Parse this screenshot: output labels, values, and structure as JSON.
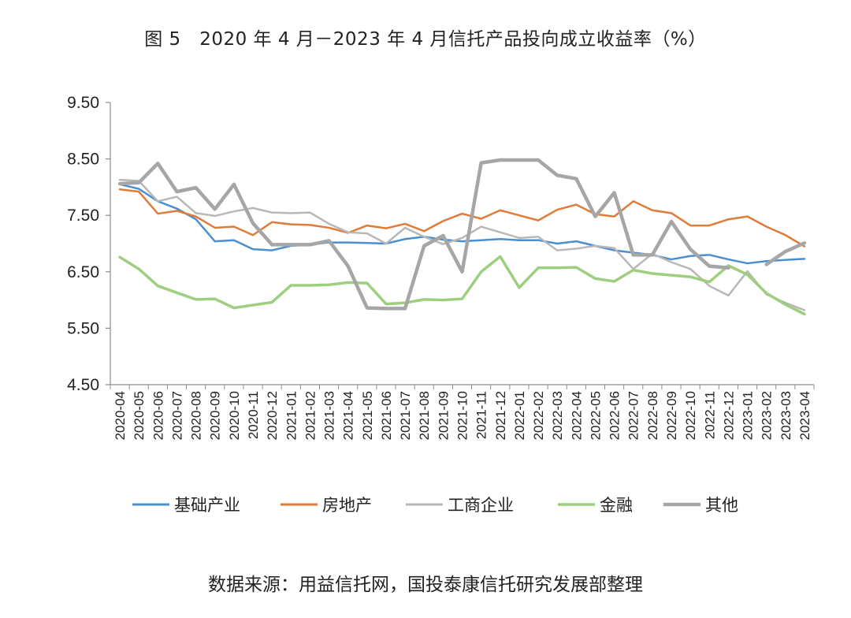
{
  "title": "图 5　2020 年 4 月－2023 年 4 月信托产品投向成立收益率（%）",
  "source_note": "数据来源：用益信托网，国投泰康信托研究发展部整理",
  "chart_data": {
    "type": "line",
    "ylim": [
      4.5,
      9.5
    ],
    "yticks": [
      "9.50",
      "8.50",
      "7.50",
      "6.50",
      "5.50",
      "4.50"
    ],
    "ytick_values": [
      9.5,
      8.5,
      7.5,
      6.5,
      5.5,
      4.5
    ],
    "grid": false,
    "legend_position": "bottom",
    "categories": [
      "2020-04",
      "2020-05",
      "2020-06",
      "2020-07",
      "2020-08",
      "2020-09",
      "2020-10",
      "2020-11",
      "2020-12",
      "2021-01",
      "2021-02",
      "2021-03",
      "2021-04",
      "2021-05",
      "2021-06",
      "2021-07",
      "2021-08",
      "2021-09",
      "2021-10",
      "2021-11",
      "2021-12",
      "2022-01",
      "2022-02",
      "2022-03",
      "2022-04",
      "2022-05",
      "2022-06",
      "2022-07",
      "2022-08",
      "2022-09",
      "2022-10",
      "2022-11",
      "2022-12",
      "2023-01",
      "2023-02",
      "2023-03",
      "2023-04"
    ],
    "series": [
      {
        "name": "基础产业",
        "color": "#4a8fcf",
        "width": 2.5,
        "values": [
          8.05,
          7.97,
          7.75,
          7.62,
          7.43,
          7.04,
          7.06,
          6.9,
          6.88,
          6.96,
          6.98,
          7.02,
          7.02,
          7.01,
          7.0,
          7.08,
          7.12,
          7.07,
          7.04,
          7.06,
          7.08,
          7.06,
          7.06,
          7.0,
          7.04,
          6.96,
          6.88,
          6.84,
          6.8,
          6.72,
          6.78,
          6.8,
          6.72,
          6.65,
          6.69,
          6.71,
          6.73
        ]
      },
      {
        "name": "房地产",
        "color": "#e07b39",
        "width": 2.5,
        "values": [
          7.96,
          7.92,
          7.53,
          7.58,
          7.48,
          7.28,
          7.3,
          7.15,
          7.38,
          7.34,
          7.33,
          7.28,
          7.19,
          7.32,
          7.27,
          7.35,
          7.22,
          7.4,
          7.53,
          7.44,
          7.59,
          7.5,
          7.41,
          7.6,
          7.69,
          7.52,
          7.48,
          7.75,
          7.59,
          7.54,
          7.32,
          7.32,
          7.43,
          7.48,
          7.3,
          7.15,
          6.95
        ]
      },
      {
        "name": "工商企业",
        "color": "#b8b8b8",
        "width": 2.5,
        "values": [
          8.13,
          8.11,
          7.75,
          7.83,
          7.54,
          7.49,
          7.57,
          7.63,
          7.55,
          7.54,
          7.55,
          7.35,
          7.2,
          7.18,
          7.0,
          7.28,
          7.12,
          6.99,
          7.1,
          7.3,
          7.2,
          7.1,
          7.12,
          6.88,
          6.91,
          6.96,
          6.92,
          6.55,
          6.82,
          6.67,
          6.55,
          6.25,
          6.08,
          6.51,
          6.1,
          5.95,
          5.82
        ]
      },
      {
        "name": "金融",
        "color": "#9dcf7f",
        "width": 3.5,
        "values": [
          6.76,
          6.55,
          6.25,
          6.13,
          6.01,
          6.02,
          5.86,
          5.91,
          5.96,
          6.26,
          6.26,
          6.27,
          6.31,
          6.3,
          5.93,
          5.95,
          6.01,
          6.0,
          6.02,
          6.5,
          6.77,
          6.22,
          6.57,
          6.57,
          6.58,
          6.38,
          6.33,
          6.53,
          6.47,
          6.44,
          6.41,
          6.32,
          6.61,
          6.45,
          6.12,
          5.92,
          5.75
        ]
      },
      {
        "name": "其他",
        "color": "#a6a6a6",
        "width": 4.5,
        "values": [
          8.06,
          8.08,
          8.42,
          7.92,
          7.99,
          7.61,
          8.05,
          7.36,
          6.98,
          6.98,
          6.98,
          7.05,
          6.6,
          5.86,
          5.85,
          5.85,
          6.96,
          7.14,
          6.5,
          8.43,
          8.48,
          8.48,
          8.48,
          8.21,
          8.15,
          7.48,
          7.9,
          6.8,
          6.8,
          7.39,
          6.9,
          6.6,
          6.57,
          null,
          6.63,
          6.86,
          7.01
        ]
      }
    ]
  }
}
